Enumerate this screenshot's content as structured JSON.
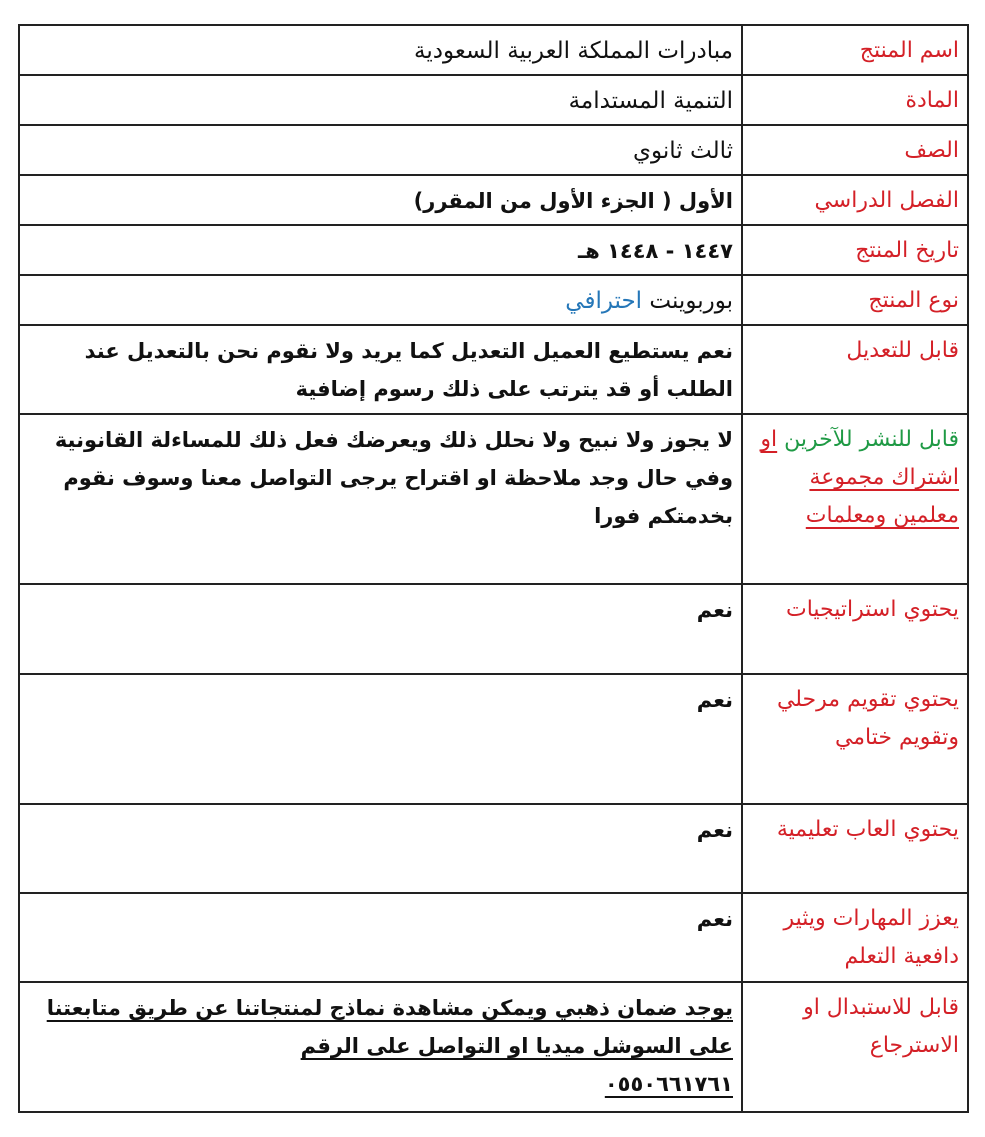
{
  "colors": {
    "label": "#d42027",
    "green": "#1f9a45",
    "blue": "#2577b8",
    "text": "#111111"
  },
  "rows": [
    {
      "label": "اسم المنتج",
      "value": "مبادرات المملكة العربية السعودية"
    },
    {
      "label": "المادة",
      "value": "التنمية المستدامة"
    },
    {
      "label": "الصف",
      "value": "ثالث ثانوي"
    },
    {
      "label": "الفصل الدراسي",
      "value": "الأول ( الجزء الأول من المقرر)"
    },
    {
      "label": "تاريخ المنتج",
      "value": "١٤٤٧ - ١٤٤٨ هـ"
    },
    {
      "label": "نوع المنتج",
      "value_black": "بوربوينت",
      "value_blue": "احترافي"
    },
    {
      "label": "قابل للتعديل",
      "value": "نعم يستطيع العميل التعديل كما يريد  ولا نقوم نحن  بالتعديل عند الطلب أو قد يترتب على ذلك رسوم إضافية"
    },
    {
      "label_green": "قابل للنشر للآخرين",
      "label_red": "او اشتراك مجموعة معلمين ومعلمات",
      "value": "لا يجوز ولا نبيح ولا نحلل ذلك ويعرضك فعل ذلك للمساءلة القانونية وفي حال وجد ملاحظة او اقتراح يرجى التواصل معنا وسوف نقوم بخدمتكم فورا"
    },
    {
      "label": "يحتوي استراتيجيات",
      "value": "نعم"
    },
    {
      "label": "يحتوي تقويم مرحلي وتقويم ختامي",
      "value": "نعم"
    },
    {
      "label": "يحتوي العاب تعليمية",
      "value": "نعم"
    },
    {
      "label": "يعزز المهارات ويثير دافعية التعلم",
      "value": "نعم"
    },
    {
      "label": "قابل للاستبدال او الاسترجاع",
      "value": "يوجد ضمان ذهبي ويمكن مشاهدة نماذج لمنتجاتنا عن طريق متابعتنا على السوشل ميديا او التواصل على الرقم",
      "phone": "٠٥٥٠٦٦١٧٦١"
    }
  ]
}
